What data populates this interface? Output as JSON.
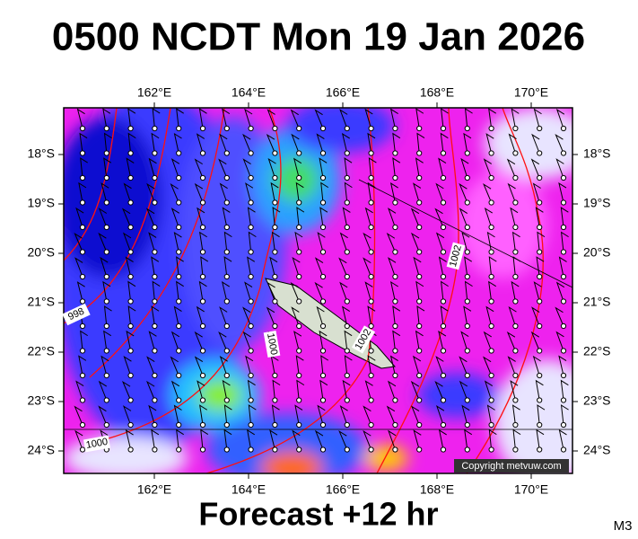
{
  "header": {
    "title": "0500 NCDT Mon 19 Jan 2026"
  },
  "map": {
    "lon_labels": [
      "162°E",
      "164°E",
      "166°E",
      "168°E",
      "170°E"
    ],
    "lat_labels": [
      "18°S",
      "19°S",
      "20°S",
      "21°S",
      "22°S",
      "23°S",
      "24°S"
    ],
    "contour_labels": [
      "998",
      "1000",
      "1000",
      "1002",
      "1002"
    ],
    "copyright": "Copyright metvuw.com"
  },
  "footer": {
    "forecast": "Forecast +12 hr",
    "code": "M3"
  }
}
